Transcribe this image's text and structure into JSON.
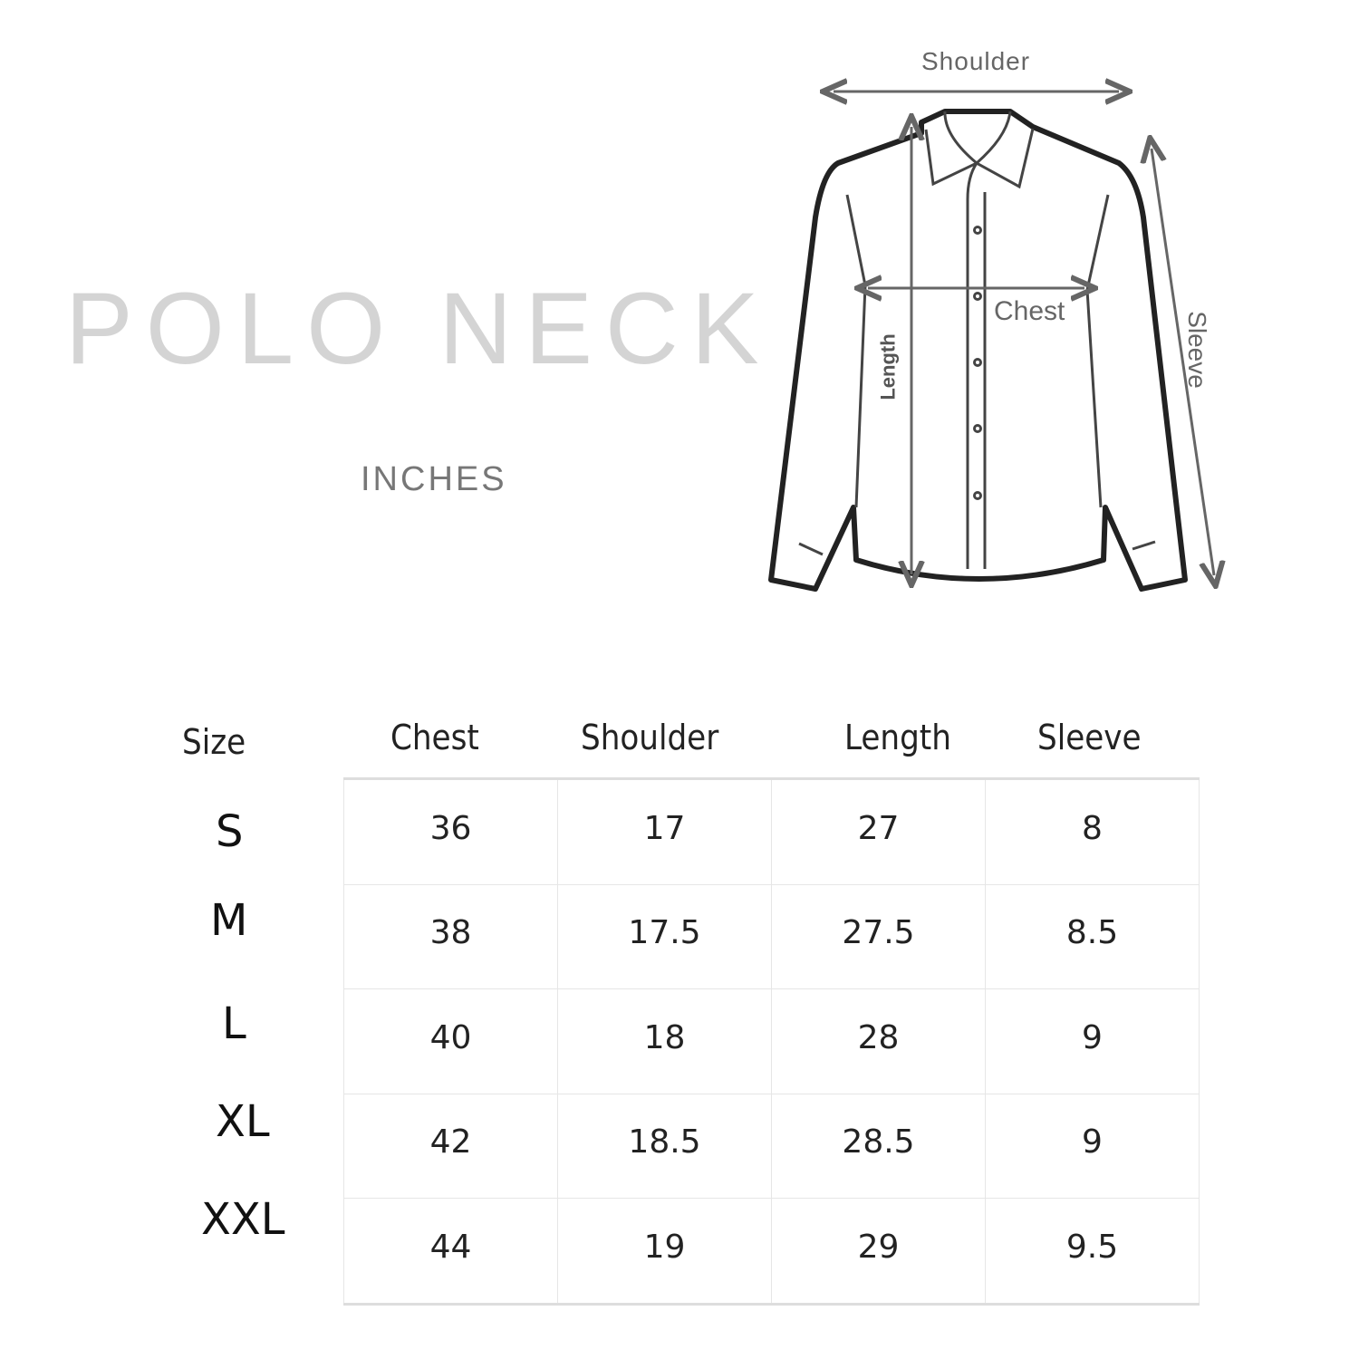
{
  "title": "POLO NECK",
  "units": "INCHES",
  "diagram": {
    "shoulder_label": "Shoulder",
    "chest_label": "Chest",
    "length_label": "Length",
    "sleeve_label": "Sleeve"
  },
  "table": {
    "headers": [
      "Size",
      "Chest",
      "Shoulder",
      "Length",
      "Sleeve"
    ],
    "rows": [
      {
        "size": "S",
        "values": [
          "36",
          "17",
          "27",
          "8"
        ]
      },
      {
        "size": "M",
        "values": [
          "38",
          "17.5",
          "27.5",
          "8.5"
        ]
      },
      {
        "size": "L",
        "values": [
          "40",
          "18",
          "28",
          "9"
        ]
      },
      {
        "size": "XL",
        "values": [
          "42",
          "18.5",
          "28.5",
          "9"
        ]
      },
      {
        "size": "XXL",
        "values": [
          "44",
          "19",
          "29",
          "9.5"
        ]
      }
    ]
  }
}
